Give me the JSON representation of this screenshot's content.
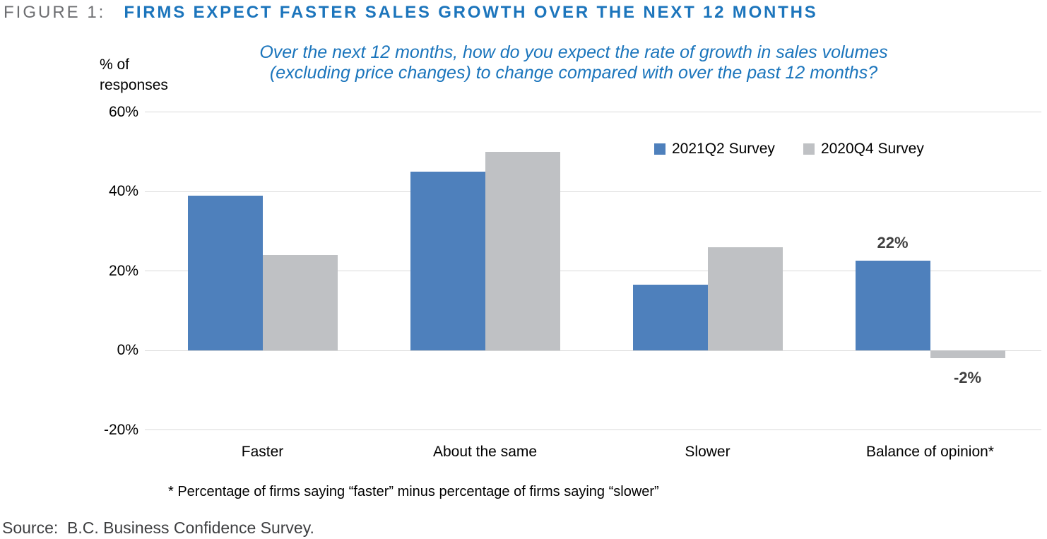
{
  "figure": {
    "label": "FIGURE 1:",
    "title": "FIRMS EXPECT FASTER SALES GROWTH OVER THE NEXT 12 MONTHS"
  },
  "subtitle": {
    "line1": "Over the next 12 months, how do you expect the rate of growth in sales volumes",
    "line2": "(excluding price changes) to change compared with over the past 12 months?"
  },
  "axis_label": {
    "line1": "% of",
    "line2": "responses"
  },
  "footnote": "* Percentage of firms saying “faster” minus percentage of firms saying “slower”",
  "source": "Source:  B.C. Business Confidence Survey.",
  "colors": {
    "series1": "#4e80bc",
    "series2": "#bfc1c4",
    "title_blue": "#1c75bc",
    "subtitle_blue": "#1b75bc",
    "figure_label_gray": "#6d6e71",
    "gridline": "#d9d9d9",
    "annotation": "#404040"
  },
  "chart_data": {
    "type": "bar",
    "title": "Over the next 12 months, how do you expect the rate of growth in sales volumes (excluding price changes) to change compared with over the past 12 months?",
    "categories": [
      "Faster",
      "About the same",
      "Slower",
      "Balance of opinion*"
    ],
    "series": [
      {
        "name": "2021Q2 Survey",
        "color_key": "series1",
        "values": [
          39,
          45,
          16.5,
          22.5
        ]
      },
      {
        "name": "2020Q4 Survey",
        "color_key": "series2",
        "values": [
          24,
          50,
          26,
          -2
        ]
      }
    ],
    "xlabel": "",
    "ylabel": "% of responses",
    "ylim": [
      -20,
      60
    ],
    "yticks": [
      {
        "value": 60,
        "label": "60%"
      },
      {
        "value": 40,
        "label": "40%"
      },
      {
        "value": 20,
        "label": "20%"
      },
      {
        "value": 0,
        "label": "0%"
      },
      {
        "value": -20,
        "label": "-20%"
      }
    ],
    "grid": true,
    "legend_position": "top-right",
    "annotations": [
      {
        "series": 0,
        "category": 3,
        "text": "22%"
      },
      {
        "series": 1,
        "category": 3,
        "text": "-2%"
      }
    ]
  }
}
